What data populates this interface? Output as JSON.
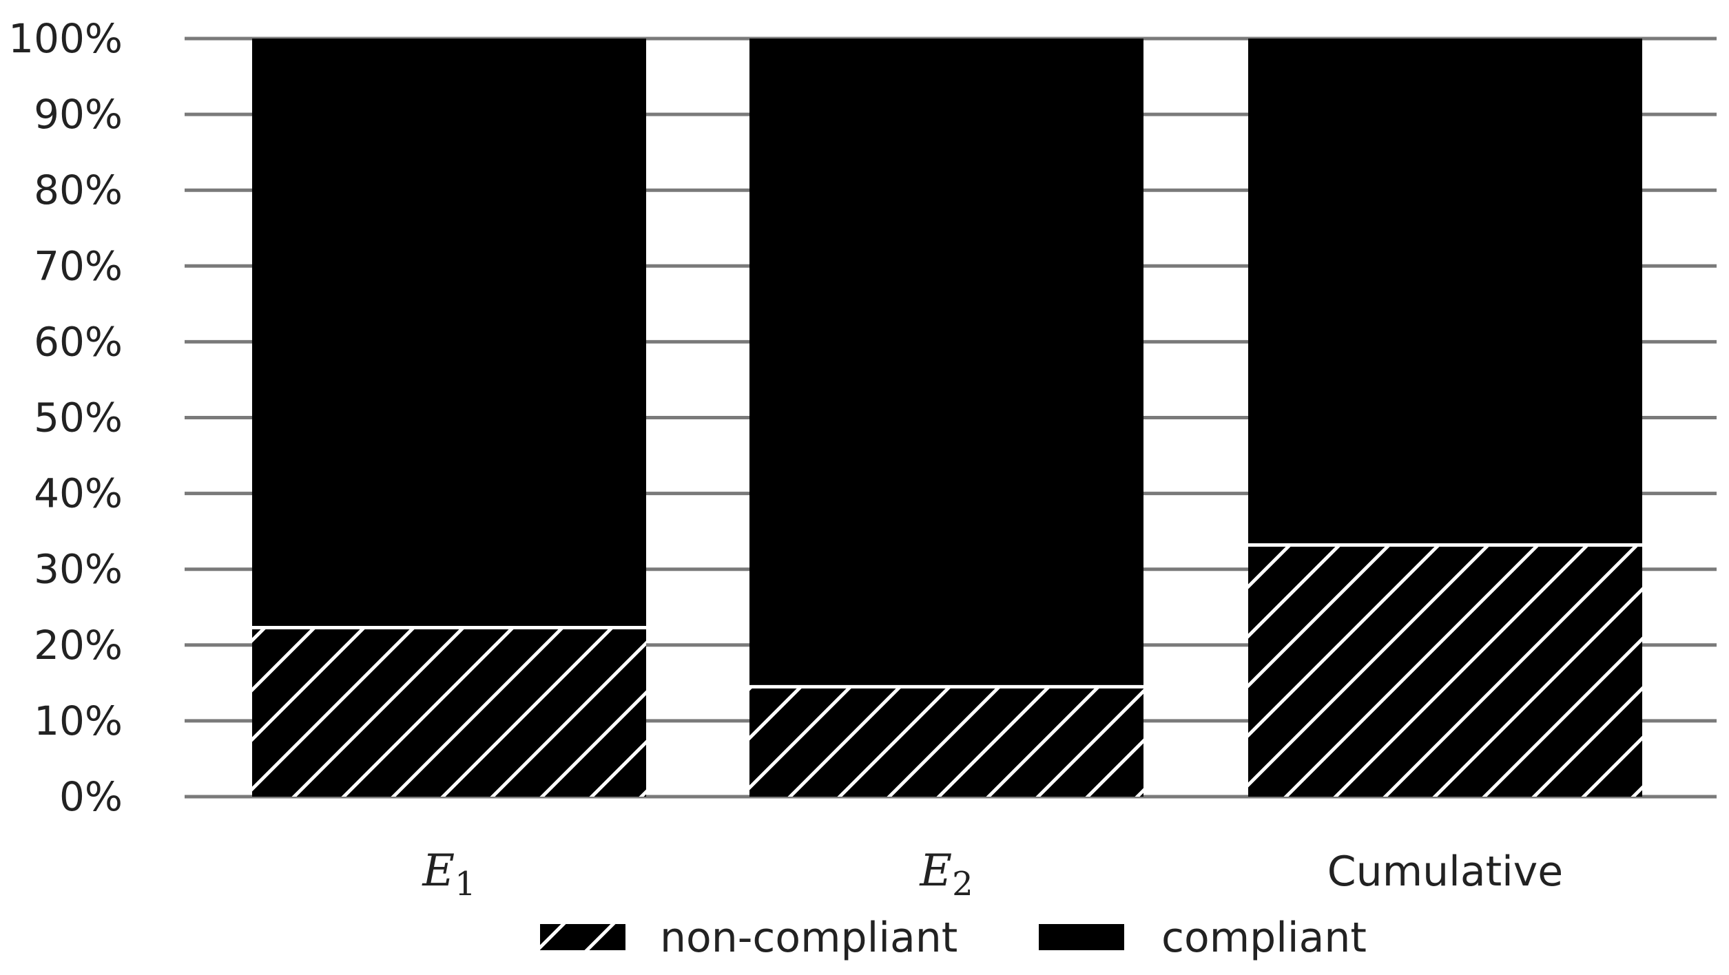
{
  "chart_data": {
    "type": "bar",
    "stacked": true,
    "categories": [
      "E1",
      "E2",
      "Cumulative"
    ],
    "category_display": [
      {
        "base": "E",
        "sub": "1",
        "math": true
      },
      {
        "base": "E",
        "sub": "2",
        "math": true
      },
      {
        "base": "Cumulative",
        "sub": "",
        "math": false
      }
    ],
    "series": [
      {
        "name": "non-compliant",
        "values": [
          22.3,
          14.5,
          33.2
        ],
        "pattern": "hatch"
      },
      {
        "name": "compliant",
        "values": [
          77.7,
          85.5,
          66.8
        ],
        "pattern": "solid"
      }
    ],
    "ylim": [
      0,
      100
    ],
    "yticks": [
      0,
      10,
      20,
      30,
      40,
      50,
      60,
      70,
      80,
      90,
      100
    ],
    "ytick_labels": [
      "0%",
      "10%",
      "20%",
      "30%",
      "40%",
      "50%",
      "60%",
      "70%",
      "80%",
      "90%",
      "100%"
    ],
    "title": "",
    "xlabel": "",
    "ylabel": "",
    "grid": true,
    "legend": {
      "placement": "bottom-center",
      "entries": [
        "non-compliant",
        "compliant"
      ]
    },
    "colors": {
      "bar_fill": "#000000",
      "hatch_line": "#ffffff",
      "grid": "#7a7a7a",
      "text": "#222222"
    }
  }
}
